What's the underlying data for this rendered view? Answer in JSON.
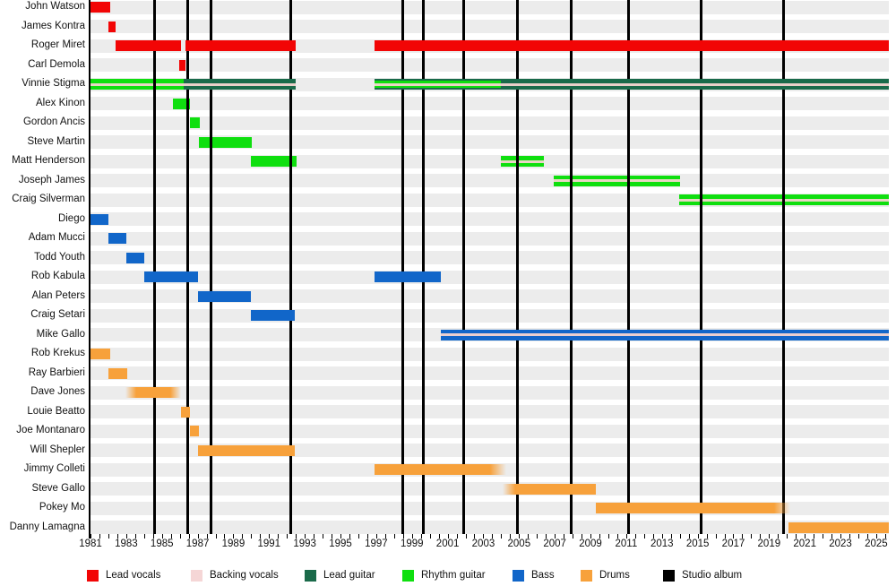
{
  "chart_data": {
    "type": "gantt-timeline",
    "description": "Band members timeline with roles and studio album markers",
    "x_axis": {
      "start_year": 1981,
      "end_year": 2025.7,
      "labeled_ticks": [
        1981,
        1983,
        1985,
        1987,
        1989,
        1991,
        1993,
        1995,
        1997,
        1999,
        2001,
        2003,
        2005,
        2007,
        2009,
        2011,
        2013,
        2015,
        2017,
        2019,
        2021,
        2023,
        2025
      ],
      "minor_tick_step_years": 0.5
    },
    "albums": {
      "legend_label": "Studio album",
      "years": [
        1984.6,
        1986.45,
        1987.75,
        1992.2,
        1998.5,
        1999.65,
        2001.9,
        2004.9,
        2007.9,
        2011.15,
        2015.2,
        2019.8
      ]
    },
    "legend": [
      {
        "key": "lead_vocals",
        "label": "Lead vocals",
        "color": "#f20505"
      },
      {
        "key": "backing_vocals",
        "label": "Backing vocals",
        "color": "#f5d6d6"
      },
      {
        "key": "lead_guitar",
        "label": "Lead guitar",
        "color": "#1a6a4a"
      },
      {
        "key": "rhythm_guitar",
        "label": "Rhythm guitar",
        "color": "#0fdf0f"
      },
      {
        "key": "bass",
        "label": "Bass",
        "color": "#1166c9"
      },
      {
        "key": "drums",
        "label": "Drums",
        "color": "#f7a13b"
      },
      {
        "key": "studio_album",
        "label": "Studio album",
        "color": "#000000"
      }
    ],
    "members": [
      {
        "name": "John Watson",
        "bars": [
          {
            "role": "lead_vocals",
            "from": 1981,
            "to": 1982.1
          }
        ]
      },
      {
        "name": "James Kontra",
        "bars": [
          {
            "role": "lead_vocals",
            "from": 1982,
            "to": 1982.4
          }
        ]
      },
      {
        "name": "Roger Miret",
        "bars": [
          {
            "role": "lead_vocals",
            "from": 1982.4,
            "to": 1986.05
          },
          {
            "role": "lead_vocals",
            "from": 1986.3,
            "to": 1992.5
          },
          {
            "role": "lead_vocals",
            "from": 1996.9,
            "to": 2025.7
          }
        ]
      },
      {
        "name": "Carl Demola",
        "bars": [
          {
            "role": "lead_vocals",
            "from": 1985.95,
            "to": 1986.3
          }
        ]
      },
      {
        "name": "Vinnie Stigma",
        "bars": [
          {
            "role": "rhythm_guitar",
            "from": 1981,
            "to": 1986.2,
            "stripe": "backing_vocals"
          },
          {
            "role": "lead_guitar",
            "from": 1986.2,
            "to": 1992.5,
            "stripe": "backing_vocals"
          },
          {
            "role": "lead_guitar",
            "from": 1996.9,
            "to": 2025.7,
            "stripe": "backing_vocals",
            "overlay": {
              "role": "rhythm_guitar",
              "from": 1996.9,
              "to": 2004
            }
          }
        ]
      },
      {
        "name": "Alex Kinon",
        "bars": [
          {
            "role": "rhythm_guitar",
            "from": 1985.6,
            "to": 1986.55
          }
        ]
      },
      {
        "name": "Gordon Ancis",
        "bars": [
          {
            "role": "rhythm_guitar",
            "from": 1986.55,
            "to": 1987.1
          }
        ]
      },
      {
        "name": "Steve Martin",
        "bars": [
          {
            "role": "rhythm_guitar",
            "from": 1987.05,
            "to": 1990.05
          }
        ]
      },
      {
        "name": "Matt Henderson",
        "bars": [
          {
            "role": "rhythm_guitar",
            "from": 1990,
            "to": 1992.55
          },
          {
            "role": "rhythm_guitar",
            "from": 2004,
            "to": 2006.4,
            "stripe": "backing_vocals"
          }
        ]
      },
      {
        "name": "Joseph James",
        "bars": [
          {
            "role": "rhythm_guitar",
            "from": 2006.95,
            "to": 2014,
            "stripe": "backing_vocals"
          }
        ]
      },
      {
        "name": "Craig Silverman",
        "bars": [
          {
            "role": "rhythm_guitar",
            "from": 2013.95,
            "to": 2025.7,
            "stripe": "backing_vocals"
          }
        ]
      },
      {
        "name": "Diego",
        "bars": [
          {
            "role": "bass",
            "from": 1981,
            "to": 1982
          }
        ]
      },
      {
        "name": "Adam Mucci",
        "bars": [
          {
            "role": "bass",
            "from": 1982,
            "to": 1983
          }
        ]
      },
      {
        "name": "Todd Youth",
        "bars": [
          {
            "role": "bass",
            "from": 1983,
            "to": 1984
          }
        ]
      },
      {
        "name": "Rob Kabula",
        "bars": [
          {
            "role": "bass",
            "from": 1984,
            "to": 1987
          },
          {
            "role": "bass",
            "from": 1996.9,
            "to": 2000.6
          }
        ]
      },
      {
        "name": "Alan Peters",
        "bars": [
          {
            "role": "bass",
            "from": 1987,
            "to": 1990
          }
        ]
      },
      {
        "name": "Craig Setari",
        "bars": [
          {
            "role": "bass",
            "from": 1990,
            "to": 1992.45
          }
        ]
      },
      {
        "name": "Mike Gallo",
        "bars": [
          {
            "role": "bass",
            "from": 2000.6,
            "to": 2025.7,
            "stripe": "backing_vocals"
          }
        ]
      },
      {
        "name": "Rob Krekus",
        "bars": [
          {
            "role": "drums",
            "from": 1981,
            "to": 1982.1
          }
        ]
      },
      {
        "name": "Ray Barbieri",
        "bars": [
          {
            "role": "drums",
            "from": 1982,
            "to": 1983.05
          }
        ]
      },
      {
        "name": "Dave Jones",
        "bars": [
          {
            "role": "drums",
            "from": 1982.95,
            "to": 1986.05,
            "fade": "both"
          }
        ]
      },
      {
        "name": "Louie Beatto",
        "bars": [
          {
            "role": "drums",
            "from": 1986.05,
            "to": 1986.55
          }
        ]
      },
      {
        "name": "Joe Montanaro",
        "bars": [
          {
            "role": "drums",
            "from": 1986.55,
            "to": 1987.05
          }
        ]
      },
      {
        "name": "Will Shepler",
        "bars": [
          {
            "role": "drums",
            "from": 1987,
            "to": 1992.45
          }
        ]
      },
      {
        "name": "Jimmy Colleti",
        "bars": [
          {
            "role": "drums",
            "from": 1996.9,
            "to": 2004.3,
            "fade": "right"
          }
        ]
      },
      {
        "name": "Steve Gallo",
        "bars": [
          {
            "role": "drums",
            "from": 2004.1,
            "to": 2009.3,
            "fade": "left"
          }
        ]
      },
      {
        "name": "Pokey Mo",
        "bars": [
          {
            "role": "drums",
            "from": 2009.3,
            "to": 2020.2,
            "fade": "right"
          }
        ]
      },
      {
        "name": "Danny Lamagna",
        "bars": [
          {
            "role": "drums",
            "from": 2020.1,
            "to": 2025.7
          }
        ]
      }
    ]
  }
}
